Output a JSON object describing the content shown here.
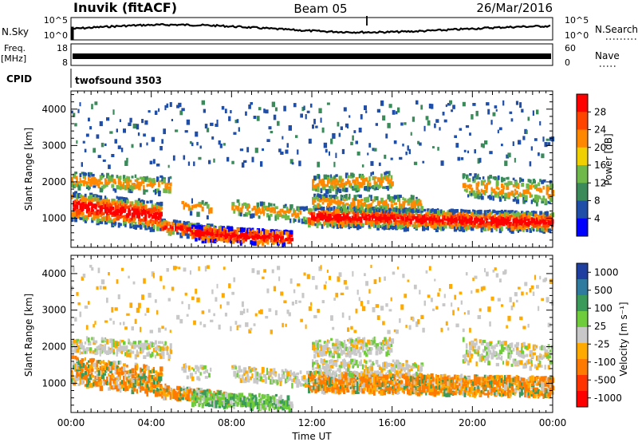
{
  "header": {
    "station": "Inuvik (fitACF)",
    "beam": "Beam 05",
    "date": "26/Mar/2016"
  },
  "top_panels": {
    "nsky_label": "N.Sky",
    "nsky_ticks": [
      "10^5",
      "10^0"
    ],
    "nsearch_label": "N.Search",
    "nsearch_ticks": [
      "10^5",
      "10^0"
    ],
    "freq_label_1": "Freq.",
    "freq_label_2": "[MHz]",
    "freq_ticks": [
      "18",
      "8"
    ],
    "nave_label": "Nave",
    "nave_ticks": [
      "60",
      "0"
    ],
    "cpid_label": "CPID",
    "cpid_value": "twofsound 3503"
  },
  "chart_data": [
    {
      "type": "heatmap",
      "name": "power",
      "ylabel": "Slant Range [km]",
      "yticks": [
        "1000",
        "2000",
        "3000",
        "4000"
      ],
      "ylim": [
        200,
        4500
      ],
      "xlim": [
        0,
        24
      ],
      "colorbar_label": "Power [dB]",
      "colorbar_ticks": [
        "4",
        "8",
        "12",
        "16",
        "20",
        "24",
        "28"
      ],
      "colors": [
        "#0000ff",
        "#1f4ea8",
        "#3a8a5a",
        "#6fb84a",
        "#f0d000",
        "#ff8800",
        "#ff4400",
        "#ff0000"
      ]
    },
    {
      "type": "heatmap",
      "name": "velocity",
      "ylabel": "Slant Range [km]",
      "yticks": [
        "1000",
        "2000",
        "3000",
        "4000"
      ],
      "ylim": [
        200,
        4500
      ],
      "xlim": [
        0,
        24
      ],
      "xlabel": "Time UT",
      "xticks": [
        "00:00",
        "04:00",
        "08:00",
        "12:00",
        "16:00",
        "20:00",
        "00:00"
      ],
      "colorbar_label": "Velocity [m s⁻¹]",
      "colorbar_ticks": [
        "1000",
        "500",
        "100",
        "25",
        "-25",
        "-100",
        "-500",
        "-1000"
      ],
      "colors": [
        "#1f3fa0",
        "#2f7a9f",
        "#3a9a5a",
        "#6fcc3a",
        "#c8c8c8",
        "#ffaa00",
        "#ff7a00",
        "#ff3300",
        "#ff0000"
      ]
    }
  ]
}
